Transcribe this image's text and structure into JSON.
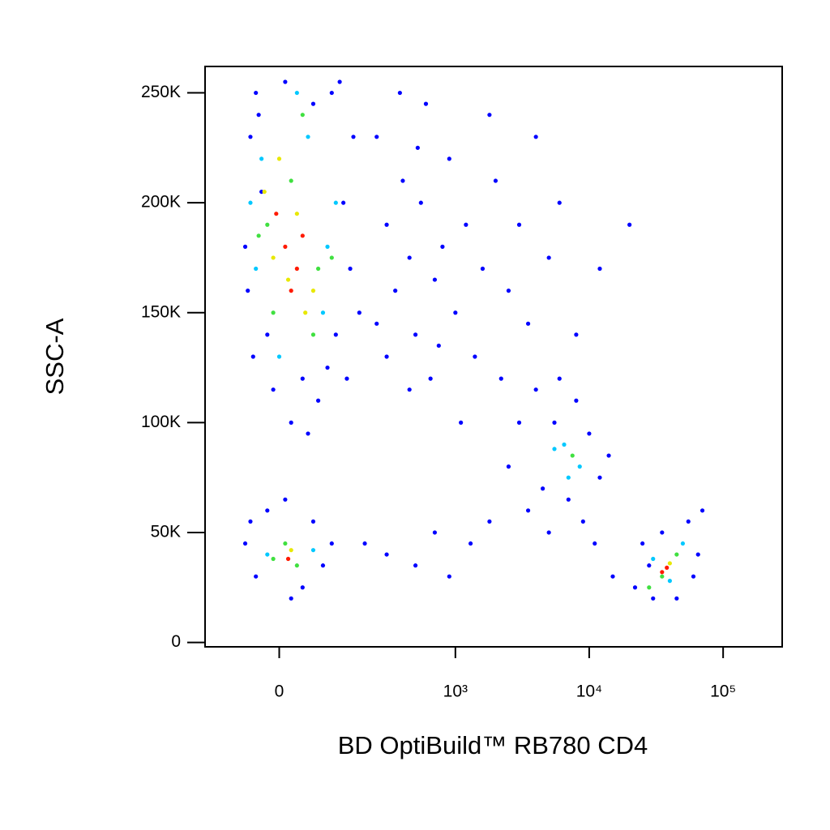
{
  "chart_data": {
    "type": "scatter",
    "x_label": "BD OptiBuild™ RB780 CD4",
    "y_label": "SSC-A",
    "xscale": "biexponential",
    "xlim": [
      -160,
      276000
    ],
    "ylim": [
      -2000,
      262000
    ],
    "xticks": [
      0,
      {
        "value": 1000,
        "label": "10³"
      },
      {
        "value": 10000,
        "label": "10⁴"
      },
      {
        "value": 100000,
        "label": "10⁵"
      }
    ],
    "yticks": [
      0,
      {
        "value": 50000,
        "label": "50K"
      },
      {
        "value": 100000,
        "label": "100K"
      },
      {
        "value": 150000,
        "label": "150K"
      },
      {
        "value": 200000,
        "label": "200K"
      },
      {
        "value": 250000,
        "label": "250K"
      }
    ],
    "series": [
      {
        "color": "#0000ff",
        "x": [
          -60,
          -50,
          -40,
          -20,
          -45,
          10,
          60,
          100,
          130,
          150,
          110,
          90,
          40,
          -10,
          -55,
          -30,
          70,
          160,
          180,
          20,
          50,
          140,
          120,
          -35,
          250,
          300,
          350,
          400,
          450,
          500,
          550,
          600,
          700,
          800,
          900,
          1000,
          1200,
          1400,
          1600,
          2000,
          2500,
          3000,
          3500,
          4000,
          5000,
          6000,
          8000,
          12000,
          20000,
          300,
          450,
          650,
          1100,
          250,
          380,
          520,
          750,
          1800,
          2200,
          -60,
          -40,
          -20,
          10,
          40,
          60,
          80,
          -50,
          20,
          100,
          200,
          300,
          500,
          700,
          900,
          1300,
          1800,
          2500,
          3000,
          3500,
          4000,
          5000,
          6000,
          7000,
          8000,
          9000,
          10000,
          12000,
          14000,
          4500,
          5500,
          11000,
          15000,
          22000,
          25000,
          30000,
          35000,
          45000,
          55000,
          65000,
          70000,
          28000,
          60000
        ],
        "y": [
          180000,
          230000,
          250000,
          140000,
          130000,
          255000,
          245000,
          250000,
          200000,
          170000,
          140000,
          125000,
          120000,
          115000,
          160000,
          205000,
          110000,
          230000,
          150000,
          100000,
          95000,
          120000,
          255000,
          240000,
          230000,
          190000,
          160000,
          210000,
          175000,
          140000,
          200000,
          245000,
          165000,
          180000,
          220000,
          150000,
          190000,
          130000,
          170000,
          210000,
          160000,
          190000,
          145000,
          230000,
          175000,
          200000,
          140000,
          170000,
          190000,
          130000,
          115000,
          120000,
          100000,
          145000,
          250000,
          225000,
          135000,
          240000,
          120000,
          45000,
          30000,
          60000,
          65000,
          25000,
          55000,
          35000,
          55000,
          20000,
          45000,
          45000,
          40000,
          35000,
          50000,
          30000,
          45000,
          55000,
          80000,
          100000,
          60000,
          115000,
          50000,
          120000,
          65000,
          110000,
          55000,
          95000,
          75000,
          85000,
          70000,
          100000,
          45000,
          30000,
          25000,
          45000,
          20000,
          50000,
          20000,
          55000,
          40000,
          60000,
          35000,
          30000
        ]
      },
      {
        "color": "#00c8ff",
        "x": [
          -30,
          50,
          80,
          0,
          -40,
          110,
          30,
          -20,
          60,
          6500,
          8500,
          7000,
          5500,
          30000,
          50000,
          40000,
          90,
          -50
        ],
        "y": [
          220000,
          230000,
          150000,
          130000,
          170000,
          200000,
          250000,
          40000,
          42000,
          90000,
          80000,
          75000,
          88000,
          38000,
          45000,
          28000,
          180000,
          200000
        ]
      },
      {
        "color": "#40e040",
        "x": [
          -20,
          20,
          70,
          -10,
          40,
          100,
          60,
          -35,
          10,
          30,
          -10,
          7500,
          35000,
          45000,
          28000
        ],
        "y": [
          190000,
          210000,
          170000,
          150000,
          240000,
          175000,
          140000,
          185000,
          45000,
          35000,
          38000,
          85000,
          30000,
          40000,
          25000
        ]
      },
      {
        "color": "#e8e800",
        "x": [
          -10,
          30,
          60,
          0,
          45,
          15,
          20,
          40000,
          -25
        ],
        "y": [
          175000,
          195000,
          160000,
          220000,
          150000,
          165000,
          42000,
          36000,
          205000
        ]
      },
      {
        "color": "#ff1a00",
        "x": [
          10,
          30,
          -5,
          40,
          20,
          15,
          35000,
          38000
        ],
        "y": [
          180000,
          170000,
          195000,
          185000,
          160000,
          38000,
          32000,
          34000
        ]
      }
    ]
  }
}
